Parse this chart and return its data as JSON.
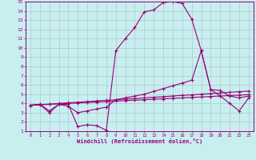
{
  "xlabel": "Windchill (Refroidissement éolien,°C)",
  "bg_color": "#c8eef0",
  "line_color": "#990077",
  "grid_color": "#b0c8cc",
  "xlim": [
    -0.5,
    23.5
  ],
  "ylim": [
    1,
    15
  ],
  "xticks": [
    0,
    1,
    2,
    3,
    4,
    5,
    6,
    7,
    8,
    9,
    10,
    11,
    12,
    13,
    14,
    15,
    16,
    17,
    18,
    19,
    20,
    21,
    22,
    23
  ],
  "yticks": [
    1,
    2,
    3,
    4,
    5,
    6,
    7,
    8,
    9,
    10,
    11,
    12,
    13,
    14,
    15
  ],
  "line1_x": [
    0,
    1,
    2,
    3,
    4,
    5,
    6,
    7,
    8,
    9,
    10,
    11,
    12,
    13,
    14,
    15,
    16,
    17,
    18,
    19,
    20,
    21,
    22,
    23
  ],
  "line1_y": [
    3.8,
    3.9,
    3.0,
    3.9,
    3.9,
    1.5,
    1.7,
    1.6,
    1.1,
    9.7,
    11.0,
    12.2,
    13.9,
    14.1,
    14.9,
    15.0,
    14.8,
    13.1,
    9.7,
    5.5,
    4.8,
    4.0,
    3.2,
    4.6
  ],
  "line2_x": [
    0,
    1,
    2,
    3,
    4,
    5,
    6,
    7,
    8,
    9,
    10,
    11,
    12,
    13,
    14,
    15,
    16,
    17,
    18,
    19,
    20,
    21,
    22,
    23
  ],
  "line2_y": [
    3.8,
    3.9,
    3.2,
    3.9,
    3.7,
    3.0,
    3.2,
    3.4,
    3.6,
    4.4,
    4.6,
    4.8,
    5.0,
    5.3,
    5.6,
    5.9,
    6.2,
    6.5,
    9.7,
    5.5,
    5.4,
    4.8,
    4.6,
    4.8
  ],
  "line3_x": [
    0,
    1,
    2,
    3,
    4,
    5,
    6,
    7,
    8,
    9,
    10,
    11,
    12,
    13,
    14,
    15,
    16,
    17,
    18,
    19,
    20,
    21,
    22,
    23
  ],
  "line3_y": [
    3.8,
    3.85,
    3.9,
    3.95,
    4.0,
    4.05,
    4.1,
    4.15,
    4.2,
    4.25,
    4.3,
    4.35,
    4.4,
    4.45,
    4.5,
    4.55,
    4.6,
    4.65,
    4.7,
    4.75,
    4.8,
    4.85,
    4.9,
    4.95
  ],
  "line4_x": [
    0,
    1,
    2,
    3,
    4,
    5,
    6,
    7,
    8,
    9,
    10,
    11,
    12,
    13,
    14,
    15,
    16,
    17,
    18,
    19,
    20,
    21,
    22,
    23
  ],
  "line4_y": [
    3.8,
    3.87,
    3.93,
    4.0,
    4.07,
    4.13,
    4.2,
    4.27,
    4.33,
    4.4,
    4.47,
    4.53,
    4.6,
    4.67,
    4.73,
    4.8,
    4.87,
    4.93,
    5.0,
    5.07,
    5.13,
    5.2,
    5.27,
    5.33
  ],
  "marker": "+"
}
